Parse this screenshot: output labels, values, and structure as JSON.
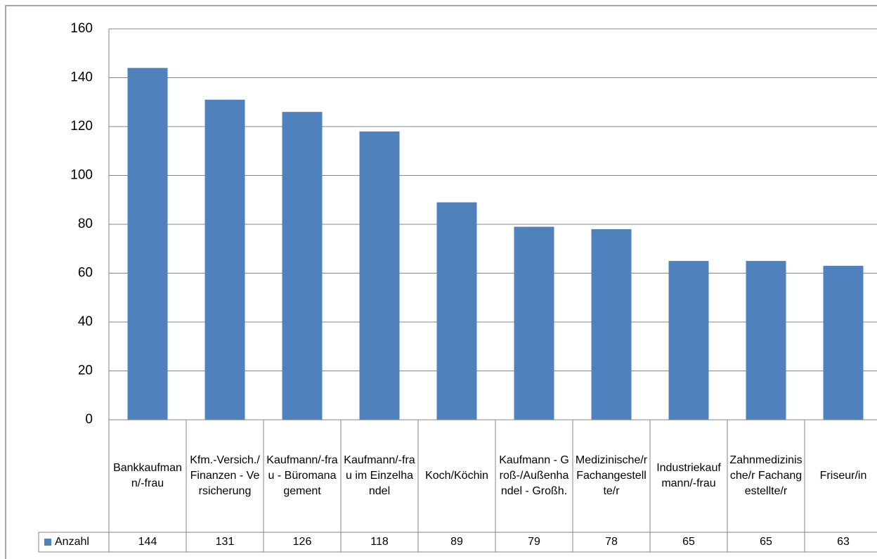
{
  "chart_data": {
    "type": "bar",
    "categories": [
      "Bankkaufmann/-frau",
      "Kfm.-Versich./Finanzen - Versicherung",
      "Kaufmann/-frau - Büromanagement",
      "Kaufmann/-frau im Einzelhandel",
      "Koch/Köchin",
      "Kaufmann - Groß-/Außenhandel - Großh.",
      "Medizinische/r Fachangestellte/r",
      "Industriekaufmann/-frau",
      "Zahnmedizinische/r Fachangestellte/r",
      "Friseur/in"
    ],
    "series": [
      {
        "name": "Anzahl",
        "color": "#4f81bd",
        "values": [
          144,
          131,
          126,
          118,
          89,
          79,
          78,
          65,
          65,
          63
        ]
      }
    ],
    "ylim": [
      0,
      160
    ],
    "yticks": [
      0,
      20,
      40,
      60,
      80,
      100,
      120,
      140,
      160
    ],
    "grid": true,
    "data_table": true
  }
}
